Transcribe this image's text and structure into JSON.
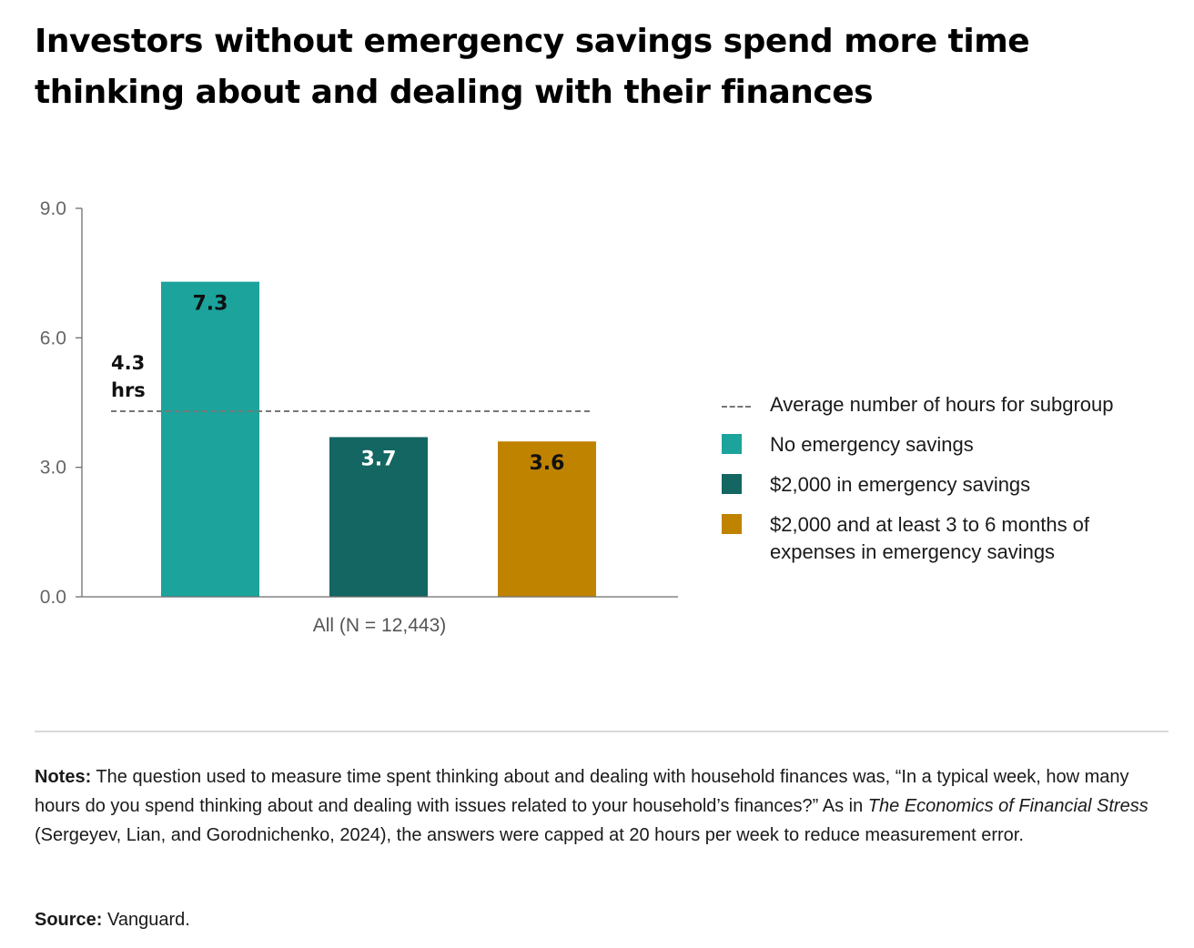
{
  "title": "Investors without emergency savings spend more time thinking about and dealing with their finances",
  "chart_data": {
    "type": "bar",
    "title": "Investors without emergency savings spend more time thinking about and dealing with their finances",
    "categories": [
      "All (N = 12,443)"
    ],
    "series": [
      {
        "name": "No emergency savings",
        "values": [
          7.3
        ],
        "color": "#1ba39c",
        "label_color": "#111111"
      },
      {
        "name": "$2,000 in emergency savings",
        "values": [
          3.7
        ],
        "color": "#136661",
        "label_color": "#ffffff"
      },
      {
        "name": "$2,000 and at least 3 to 6 months of expenses in emergency savings",
        "values": [
          3.6
        ],
        "color": "#bf8300",
        "label_color": "#111111"
      }
    ],
    "data_labels": [
      "7.3",
      "3.7",
      "3.6"
    ],
    "reference_line": {
      "name": "Average number of hours for subgroup",
      "value": 4.3,
      "label_value": "4.3",
      "label_unit": "hrs"
    },
    "yticks": [
      0,
      3,
      6,
      9
    ],
    "ytick_labels": [
      "0.0",
      "3.0",
      "6.0",
      "9.0"
    ],
    "ylim": [
      0,
      9
    ],
    "xlabel": "All (N = 12,443)",
    "ylabel": "",
    "legend_position": "right"
  },
  "legend": {
    "items": [
      {
        "kind": "dash",
        "label": "Average number of hours for subgroup",
        "color": "#777777"
      },
      {
        "kind": "swatch",
        "label": "No emergency savings",
        "color": "#1ba39c"
      },
      {
        "kind": "swatch",
        "label": "$2,000 in emergency savings",
        "color": "#136661"
      },
      {
        "kind": "swatch",
        "label": "$2,000 and at least 3 to 6 months of expenses in emergency savings",
        "color": "#bf8300"
      }
    ]
  },
  "notes": {
    "label": "Notes:",
    "text_before": " The question used to measure time spent thinking about and dealing with household finances was, “In a typical week, how many hours do you spend thinking about and dealing with issues related to your household’s finances?” As in ",
    "italic": "The Economics of Financial Stress",
    "text_after": " (Sergeyev, Lian, and Gorodnichenko, 2024), the answers were capped at 20 hours per week to reduce measurement error."
  },
  "source": {
    "label": "Source:",
    "text": " Vanguard."
  }
}
